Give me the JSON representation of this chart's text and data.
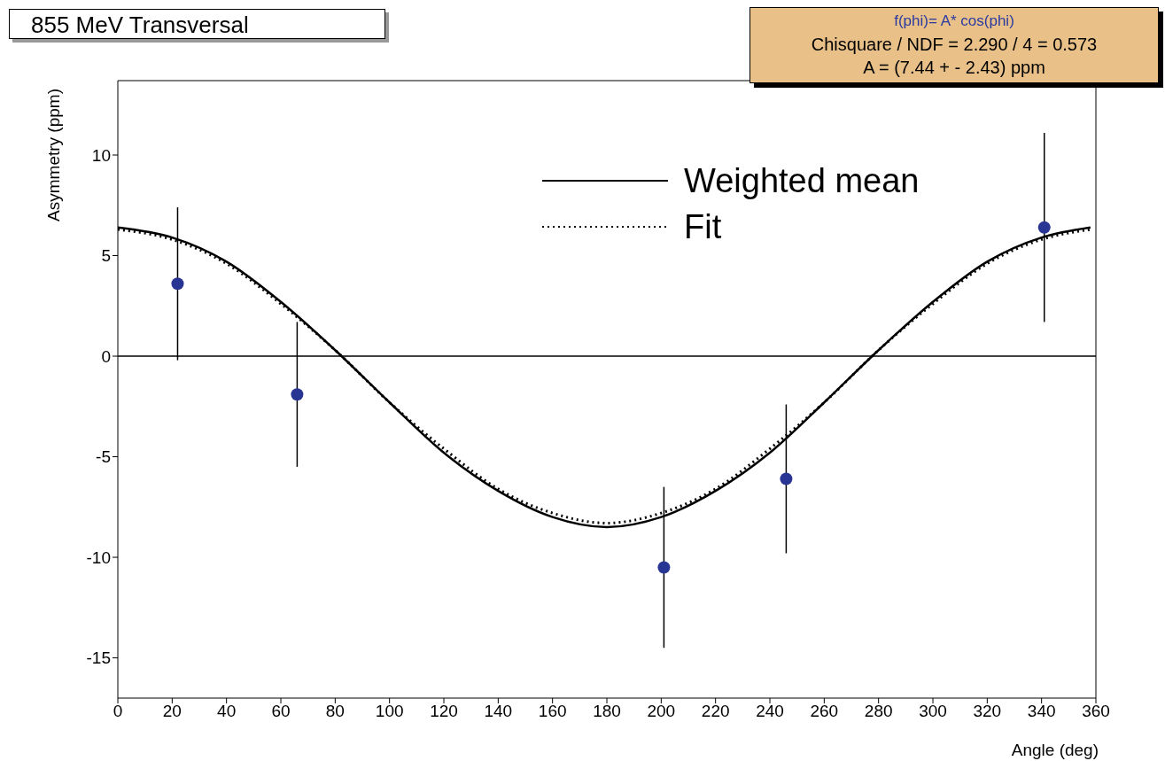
{
  "chart_data": {
    "type": "scatter",
    "title": "855 MeV Transversal",
    "xlabel": "Angle (deg)",
    "ylabel": "Asymmetry (ppm)",
    "annotations": [
      "f(phi)= A* cos(phi)",
      "Chisquare / NDF =  2.290 / 4 =  0.573",
      "A =  (7.44 + - 2.43) ppm"
    ],
    "xlim": [
      0,
      360
    ],
    "xticks": [
      0,
      20,
      40,
      60,
      80,
      100,
      120,
      140,
      160,
      180,
      200,
      220,
      240,
      260,
      280,
      300,
      320,
      340,
      360
    ],
    "ylim": [
      -17,
      13.7
    ],
    "yticks": [
      -15,
      -10,
      -5,
      0,
      5,
      10
    ],
    "grid": false,
    "legend": "top right",
    "ref_lines": [
      {
        "axis": "y",
        "value": 0,
        "color": "#000000"
      }
    ],
    "series": [
      {
        "name": "Weighted mean",
        "type": "line",
        "color": "#000000",
        "line_style": "solid",
        "marker": "none",
        "x": [
          0,
          20,
          40,
          60,
          80,
          100,
          120,
          140,
          160,
          180,
          200,
          220,
          240,
          260,
          280,
          300,
          320,
          340,
          358
        ],
        "values": [
          6.4,
          5.9,
          4.7,
          2.7,
          0.3,
          -2.3,
          -4.8,
          -6.7,
          -8.0,
          -8.5,
          -8.0,
          -6.7,
          -4.8,
          -2.3,
          0.3,
          2.7,
          4.7,
          5.9,
          6.4
        ]
      },
      {
        "name": "Fit",
        "type": "line",
        "color": "#000000",
        "line_style": "dotted",
        "marker": "none",
        "x": [
          0,
          20,
          40,
          60,
          80,
          100,
          120,
          140,
          160,
          180,
          200,
          220,
          240,
          260,
          280,
          300,
          320,
          340,
          358
        ],
        "values": [
          6.3,
          5.8,
          4.6,
          2.6,
          0.3,
          -2.3,
          -4.6,
          -6.6,
          -7.8,
          -8.3,
          -7.8,
          -6.6,
          -4.6,
          -2.3,
          0.3,
          2.6,
          4.6,
          5.8,
          6.3
        ]
      },
      {
        "type": "scatter",
        "color": "#283593",
        "marker": "circle",
        "x": [
          22,
          66,
          201,
          246,
          341
        ],
        "values": [
          3.6,
          -1.9,
          -10.5,
          -6.1,
          6.4
        ],
        "errors": [
          3.8,
          3.6,
          4.0,
          3.7,
          4.7
        ]
      }
    ]
  }
}
